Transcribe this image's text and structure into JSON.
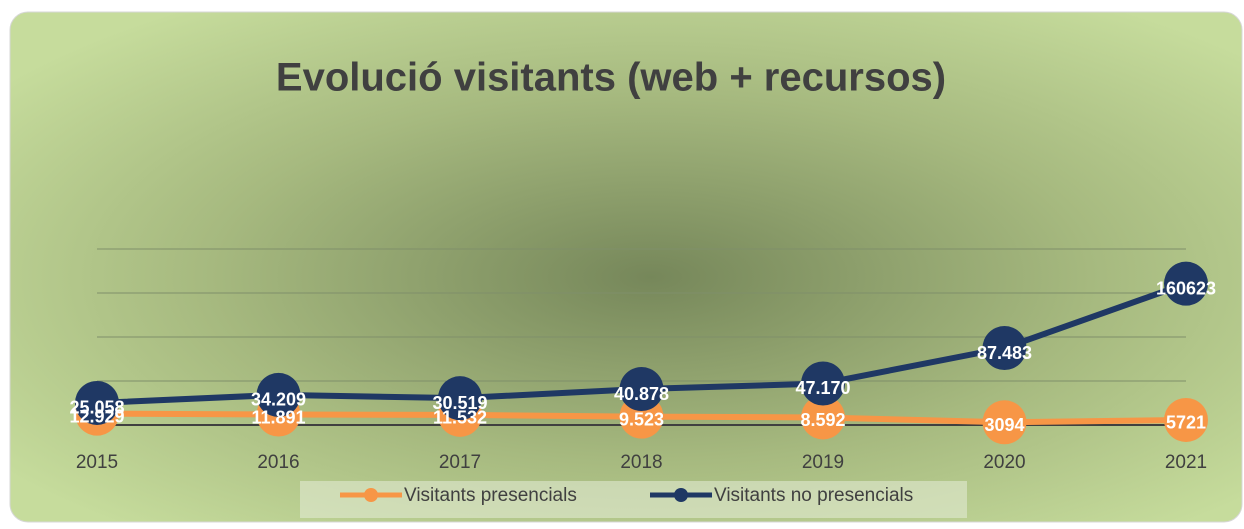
{
  "chart_data": {
    "type": "line",
    "title": "Evolució visitants (web + recursos)",
    "categories": [
      "2015",
      "2016",
      "2017",
      "2018",
      "2019",
      "2020",
      "2021"
    ],
    "series": [
      {
        "name": "Visitants presencials",
        "color": "#f79646",
        "values": [
          12929,
          11891,
          11532,
          9523,
          8592,
          3094,
          5721
        ],
        "value_labels": [
          "12.929",
          "11.891",
          "11.532",
          "9.523",
          "8.592",
          "3094",
          "5721"
        ]
      },
      {
        "name": "Visitants no presencials",
        "color": "#1f3864",
        "values": [
          25058,
          34209,
          30519,
          40878,
          47170,
          87483,
          160623
        ],
        "value_labels": [
          "25.058",
          "34.209",
          "30.519",
          "40.878",
          "47.170",
          "87.483",
          "160623"
        ]
      }
    ],
    "ylim": [
      0,
      200000
    ],
    "yticks": [
      0,
      50000,
      100000,
      150000,
      200000
    ],
    "grid": true,
    "legend": "bottom"
  }
}
